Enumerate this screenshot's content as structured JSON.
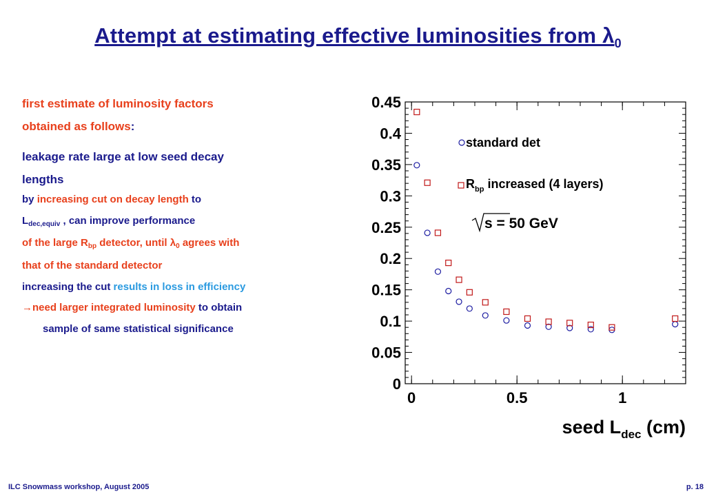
{
  "title": {
    "main": "Attempt at estimating effective luminosities from λ",
    "sub": "0"
  },
  "text": {
    "line1": "first estimate of luminosity factors",
    "line2a": "obtained as follows",
    "line2b": ":",
    "line3": "leakage rate large at low seed decay",
    "line4": "lengths",
    "line5a": "by ",
    "line5b": "increasing cut on decay length",
    "line5c": " to",
    "line6a": "L",
    "line6b": "dec,equiv",
    "line6c": " , can improve performance",
    "line7a": "of the large R",
    "line7b": "bp",
    "line7c": " detector, until λ",
    "line7d": "0",
    "line7e": " agrees with",
    "line8": "that of the standard detector",
    "line9a": "increasing the cut ",
    "line9b": "results in loss in efficiency",
    "line10a": "→",
    "line10b": "need larger integrated luminosity",
    "line10c": " to obtain",
    "line11": "sample of same statistical significance"
  },
  "footer": {
    "left": "ILC Snowmass workshop, August 2005",
    "right": "p. 18"
  },
  "chart_data": {
    "type": "scatter",
    "xlabel": "seed L",
    "xlabel_sub": "dec",
    "xlabel_unit": " (cm)",
    "xlim": [
      -0.03,
      1.3
    ],
    "ylim": [
      0,
      0.45
    ],
    "x_ticks": [
      {
        "value": 0,
        "label": "0"
      },
      {
        "value": 0.5,
        "label": "0.5"
      },
      {
        "value": 1,
        "label": "1"
      }
    ],
    "y_ticks": [
      {
        "value": 0,
        "label": "0"
      },
      {
        "value": 0.05,
        "label": "0.05"
      },
      {
        "value": 0.1,
        "label": "0.1"
      },
      {
        "value": 0.15,
        "label": "0.15"
      },
      {
        "value": 0.2,
        "label": "0.2"
      },
      {
        "value": 0.25,
        "label": "0.25"
      },
      {
        "value": 0.3,
        "label": "0.3"
      },
      {
        "value": 0.35,
        "label": "0.35"
      },
      {
        "value": 0.4,
        "label": "0.4"
      },
      {
        "value": 0.45,
        "label": "0.45"
      }
    ],
    "annotation": "s = 50 GeV",
    "series": [
      {
        "name": "standard det",
        "marker": "circle",
        "color": "#1a1aa0",
        "x": [
          0.025,
          0.075,
          0.125,
          0.175,
          0.225,
          0.275,
          0.35,
          0.45,
          0.55,
          0.65,
          0.75,
          0.85,
          0.95,
          1.25
        ],
        "y": [
          0.349,
          0.241,
          0.179,
          0.148,
          0.131,
          0.12,
          0.109,
          0.101,
          0.093,
          0.091,
          0.089,
          0.087,
          0.086,
          0.095
        ]
      },
      {
        "name": "R",
        "name_sub": "bp",
        "name_rest": " increased (4 layers)",
        "marker": "square",
        "color": "#c01818",
        "x": [
          0.025,
          0.075,
          0.125,
          0.175,
          0.225,
          0.275,
          0.35,
          0.45,
          0.55,
          0.65,
          0.75,
          0.85,
          0.95,
          1.25
        ],
        "y": [
          0.434,
          0.321,
          0.241,
          0.193,
          0.166,
          0.146,
          0.13,
          0.115,
          0.104,
          0.099,
          0.097,
          0.094,
          0.09,
          0.104
        ]
      }
    ]
  }
}
